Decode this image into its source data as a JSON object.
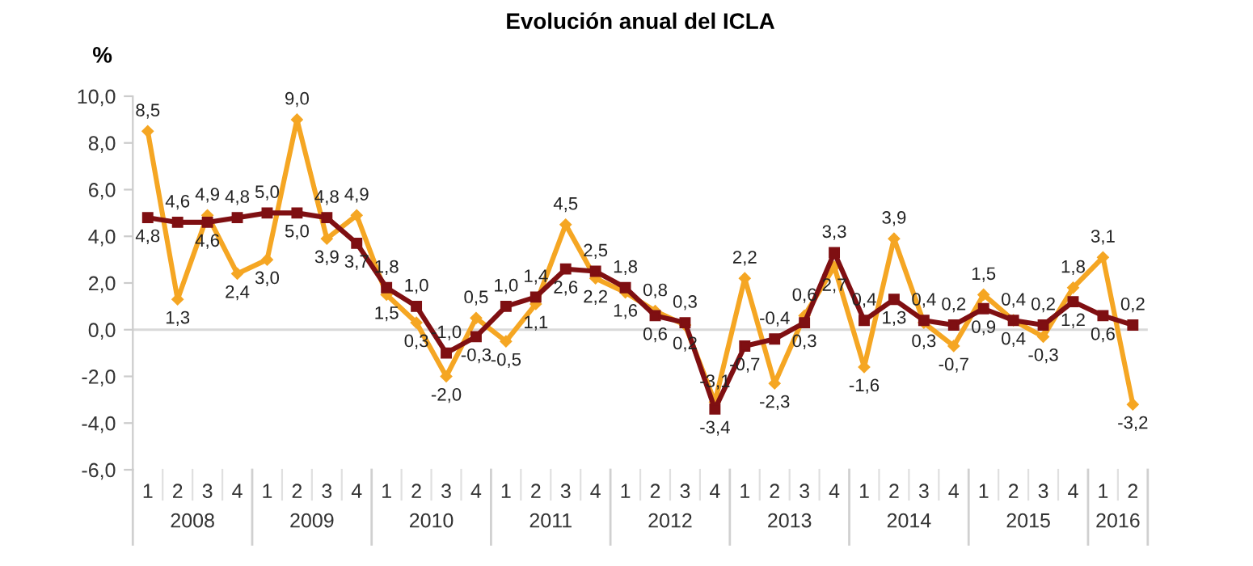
{
  "chart_data": {
    "type": "line",
    "title": "Evolución anual del ICLA",
    "ylabel": "%",
    "categories": [
      "1",
      "2",
      "3",
      "4",
      "1",
      "2",
      "3",
      "4",
      "1",
      "2",
      "3",
      "4",
      "1",
      "2",
      "3",
      "4",
      "1",
      "2",
      "3",
      "4",
      "1",
      "2",
      "3",
      "4",
      "1",
      "2",
      "3",
      "4",
      "1",
      "2",
      "3",
      "4",
      "1",
      "2"
    ],
    "annotations": [
      "2008",
      "2009",
      "2010",
      "2011",
      "2012",
      "2013",
      "2014",
      "2015",
      "2016"
    ],
    "series": [
      {
        "color": "#f5a623",
        "marker": "diamond",
        "values": [
          8.5,
          1.3,
          4.9,
          2.4,
          3.0,
          9.0,
          3.9,
          4.9,
          1.5,
          0.3,
          -2.0,
          0.5,
          -0.5,
          1.1,
          4.5,
          2.2,
          1.6,
          0.8,
          0.2,
          -3.1,
          2.2,
          -2.3,
          0.6,
          2.7,
          -1.6,
          3.9,
          0.3,
          -0.7,
          1.5,
          0.4,
          -0.3,
          1.8,
          3.1,
          -3.2
        ],
        "value_labels": [
          "8,5",
          "1,3",
          "4,9",
          "2,4",
          "3,0",
          "9,0",
          "3,9",
          "4,9",
          "1,5",
          "0,3",
          "-2,0",
          "0,5",
          "-0,5",
          "1,1",
          "4,5",
          "2,2",
          "1,6",
          "0,8",
          "0,2",
          "-3,1",
          "2,2",
          "-2,3",
          "0,6",
          "2,7",
          "-1,6",
          "3,9",
          "0,3",
          "-0,7",
          "1,5",
          "0,4",
          "-0,3",
          "1,8",
          "3,1",
          "-3,2"
        ]
      },
      {
        "color": "#7f0f12",
        "marker": "square",
        "values": [
          4.8,
          4.6,
          4.6,
          4.8,
          5.0,
          5.0,
          4.8,
          3.7,
          1.8,
          1.0,
          -1.0,
          -0.3,
          1.0,
          1.4,
          2.6,
          2.5,
          1.8,
          0.6,
          0.3,
          -3.4,
          -0.7,
          -0.4,
          0.3,
          3.3,
          0.4,
          1.3,
          0.4,
          0.2,
          0.9,
          0.4,
          0.2,
          1.2,
          0.6,
          0.2
        ],
        "value_labels": [
          "4,8",
          "4,6",
          "4,6",
          "4,8",
          "5,0",
          "5,0",
          "4,8",
          "3,7",
          "1,8",
          "1,0",
          "-1,0",
          "-0,3",
          "1,0",
          "1,4",
          "2,6",
          "2,5",
          "1,8",
          "0,6",
          "0,3",
          "-3,4",
          "-0,7",
          "-0,4",
          "0,3",
          "3,3",
          "0,4",
          "1,3",
          "0,4",
          "0,2",
          "0,9",
          "0,4",
          "0,2",
          "1,2",
          "0,6",
          "0,2"
        ]
      }
    ],
    "ylim": [
      -6,
      10
    ],
    "yticks": [
      {
        "value": -6,
        "label": "-6,0"
      },
      {
        "value": -4,
        "label": "-4,0"
      },
      {
        "value": -2,
        "label": "-2,0"
      },
      {
        "value": 0,
        "label": "0,0"
      },
      {
        "value": 2,
        "label": "2,0"
      },
      {
        "value": 4,
        "label": "4,0"
      },
      {
        "value": 6,
        "label": "6,0"
      },
      {
        "value": 8,
        "label": "8,0"
      },
      {
        "value": 10,
        "label": "10,0"
      }
    ],
    "ref_lines": [
      {
        "axis": "y",
        "value": 0,
        "color": "#d9d9d9"
      }
    ],
    "grid": false,
    "legend": false,
    "line_style": "solid"
  }
}
